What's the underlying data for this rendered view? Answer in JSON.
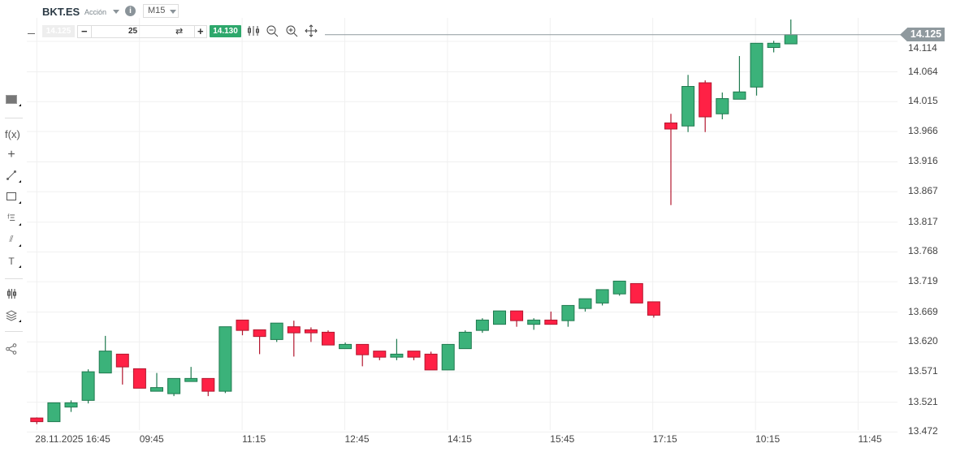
{
  "header": {
    "symbol": "BKT.ES",
    "type": "Acción",
    "timeframe": "M15",
    "bid": "14.125",
    "quantity": "25",
    "ask": "14.130"
  },
  "icons": {
    "toolbar": [
      "candlestick-icon",
      "zoom-out-icon",
      "zoom-in-icon",
      "move-icon"
    ],
    "sidebar": [
      "chart-type-icon",
      "indicators-icon",
      "crosshair-icon",
      "trendline-icon",
      "rectangle-icon",
      "fibonacci-icon",
      "pitchfork-icon",
      "text-icon",
      "candle-style-icon",
      "layers-icon",
      "share-icon"
    ]
  },
  "sidebar": {
    "indicators_label": "f(x)",
    "text_label": "T"
  },
  "colors": {
    "up": "#3bb27a",
    "up_border": "#1f7a4f",
    "down": "#ff2145",
    "down_border": "#b3172f",
    "price_line": "#8f999e",
    "ask": "#2ea86c"
  },
  "chart_data": {
    "type": "candlestick",
    "current_price": "14.125",
    "ylim": [
      13.472,
      14.15
    ],
    "y_ticks": [
      "14.114",
      "14.064",
      "14.015",
      "13.966",
      "13.916",
      "13.867",
      "13.817",
      "13.768",
      "13.719",
      "13.669",
      "13.620",
      "13.571",
      "13.521",
      "13.472"
    ],
    "x_ticks": [
      "28.11.2025 16:45",
      "09:45",
      "11:15",
      "12:45",
      "14:15",
      "15:45",
      "17:15",
      "10:15",
      "11:45"
    ],
    "grid": true,
    "ohlc": [
      [
        13.495,
        13.496,
        13.485,
        13.489
      ],
      [
        13.489,
        13.52,
        13.489,
        13.52
      ],
      [
        13.513,
        13.524,
        13.505,
        13.52
      ],
      [
        13.524,
        13.575,
        13.519,
        13.571
      ],
      [
        13.569,
        13.63,
        13.569,
        13.605
      ],
      [
        13.6,
        13.6,
        13.55,
        13.579
      ],
      [
        13.576,
        13.576,
        13.544,
        13.544
      ],
      [
        13.539,
        13.569,
        13.539,
        13.545
      ],
      [
        13.535,
        13.56,
        13.531,
        13.56
      ],
      [
        13.555,
        13.579,
        13.555,
        13.56
      ],
      [
        13.56,
        13.56,
        13.531,
        13.539
      ],
      [
        13.539,
        13.645,
        13.536,
        13.645
      ],
      [
        13.656,
        13.656,
        13.631,
        13.639
      ],
      [
        13.64,
        13.64,
        13.6,
        13.629
      ],
      [
        13.624,
        13.651,
        13.62,
        13.651
      ],
      [
        13.645,
        13.655,
        13.596,
        13.635
      ],
      [
        13.64,
        13.644,
        13.62,
        13.635
      ],
      [
        13.636,
        13.639,
        13.615,
        13.615
      ],
      [
        13.609,
        13.619,
        13.609,
        13.616
      ],
      [
        13.616,
        13.616,
        13.58,
        13.599
      ],
      [
        13.605,
        13.605,
        13.59,
        13.595
      ],
      [
        13.595,
        13.625,
        13.59,
        13.6
      ],
      [
        13.605,
        13.605,
        13.59,
        13.595
      ],
      [
        13.6,
        13.604,
        13.574,
        13.574
      ],
      [
        13.574,
        13.616,
        13.574,
        13.616
      ],
      [
        13.609,
        13.639,
        13.609,
        13.636
      ],
      [
        13.639,
        13.659,
        13.635,
        13.656
      ],
      [
        13.649,
        13.671,
        13.649,
        13.671
      ],
      [
        13.671,
        13.671,
        13.645,
        13.655
      ],
      [
        13.649,
        13.659,
        13.64,
        13.656
      ],
      [
        13.656,
        13.67,
        13.649,
        13.649
      ],
      [
        13.655,
        13.68,
        13.645,
        13.68
      ],
      [
        13.675,
        13.691,
        13.67,
        13.691
      ],
      [
        13.684,
        13.706,
        13.68,
        13.706
      ],
      [
        13.699,
        13.72,
        13.696,
        13.72
      ],
      [
        13.716,
        13.716,
        13.684,
        13.684
      ],
      [
        13.686,
        13.686,
        13.66,
        13.664
      ],
      [
        13.98,
        13.995,
        13.845,
        13.97
      ],
      [
        13.975,
        14.059,
        13.965,
        14.04
      ],
      [
        14.046,
        14.05,
        13.965,
        13.99
      ],
      [
        13.995,
        14.03,
        13.986,
        14.02
      ],
      [
        14.019,
        14.09,
        14.019,
        14.031
      ],
      [
        14.039,
        14.111,
        14.025,
        14.111
      ],
      [
        14.104,
        14.115,
        14.096,
        14.111
      ],
      [
        14.11,
        14.15,
        14.11,
        14.125
      ]
    ]
  }
}
